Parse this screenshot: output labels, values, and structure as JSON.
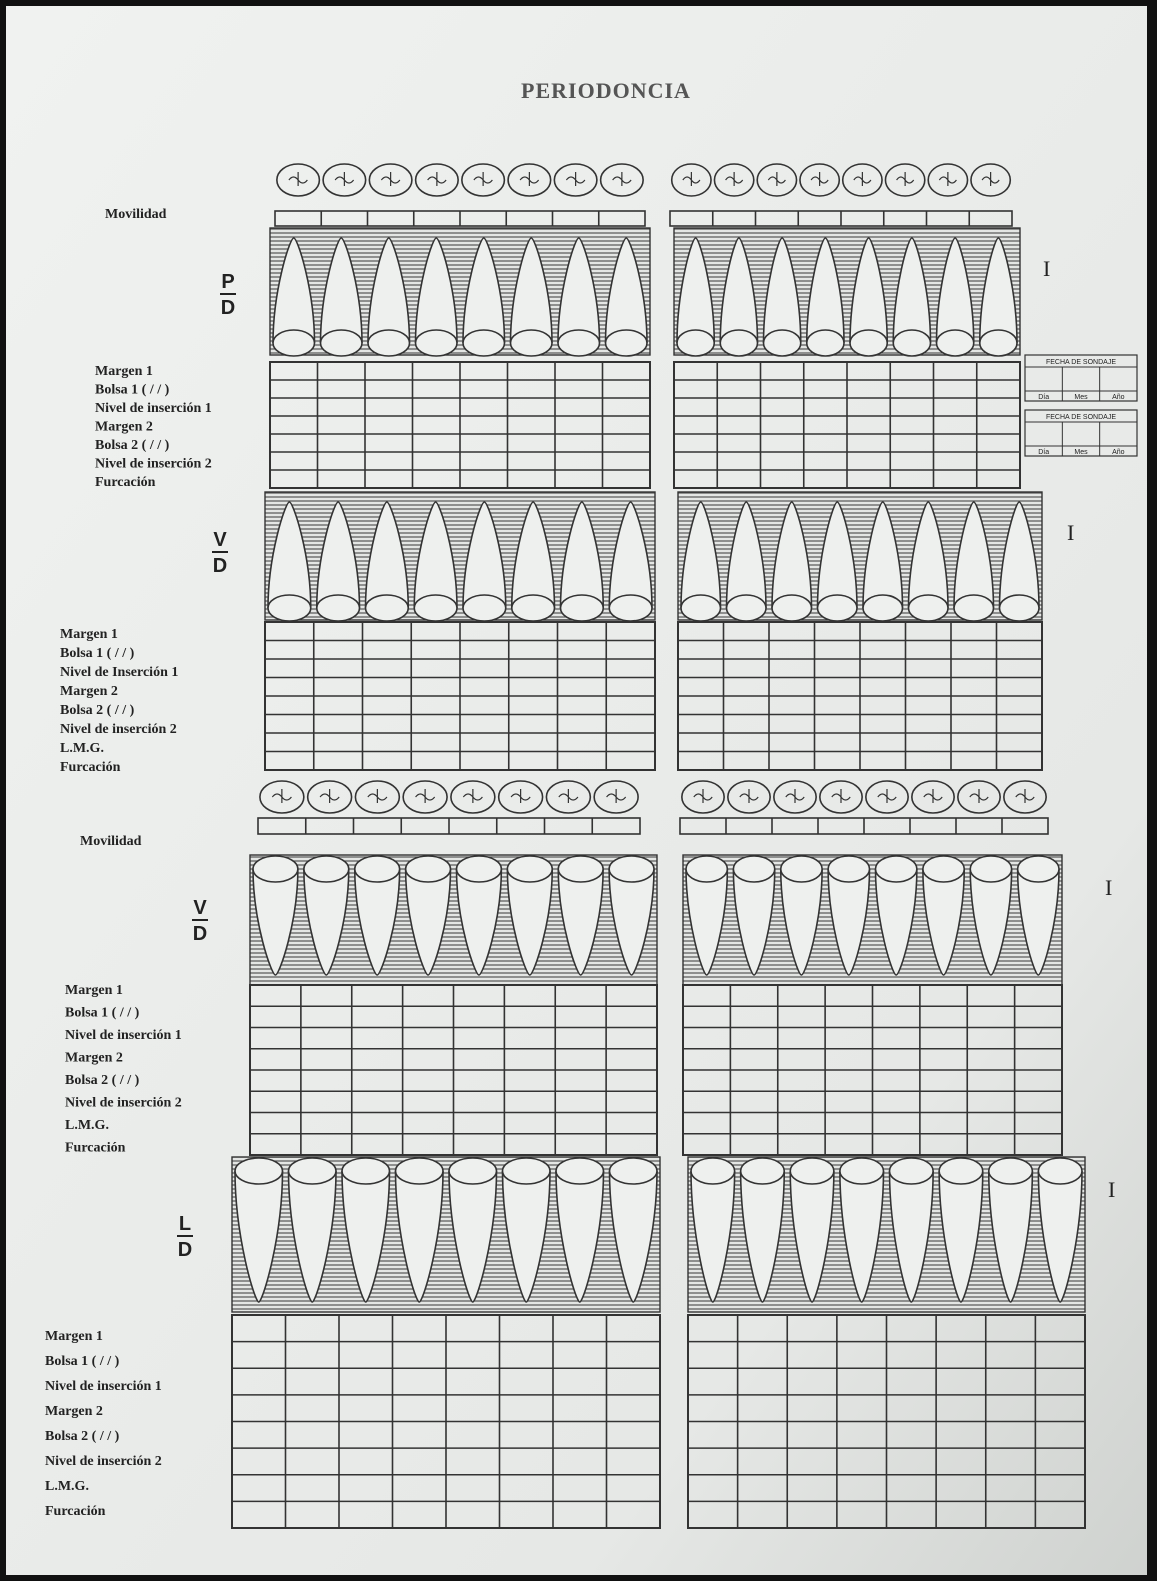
{
  "title": "PERIODONCIA",
  "mobility_labels": [
    "Movilidad",
    "Movilidad"
  ],
  "date_boxes": [
    {
      "title": "FECHA DE SONDAJE",
      "fields": [
        "Día",
        "Mes",
        "Año"
      ]
    },
    {
      "title": "FECHA DE SONDAJE",
      "fields": [
        "Día",
        "Mes",
        "Año"
      ]
    }
  ],
  "sections": [
    {
      "view": "P",
      "ref": "D",
      "side": "I",
      "rows": [
        "Margen 1",
        "Bolsa 1 ( / / )",
        "Nivel de inserción 1",
        "Margen 2",
        "Bolsa 2 ( / / )",
        "Nivel de inserción 2",
        "Furcación"
      ]
    },
    {
      "view": "V",
      "ref": "D",
      "side": "I",
      "rows": [
        "Margen 1",
        "Bolsa 1 ( / / )",
        "Nivel de Inserción 1",
        "Margen 2",
        "Bolsa 2 ( / / )",
        "Nivel de inserción 2",
        "L.M.G.",
        "Furcación"
      ]
    },
    {
      "view": "V",
      "ref": "D",
      "side": "I",
      "rows": [
        "Margen 1",
        "Bolsa 1 ( / / )",
        "Nivel de inserción 1",
        "Margen 2",
        "Bolsa 2 ( / / )",
        "Nivel de inserción 2",
        "L.M.G.",
        "Furcación"
      ]
    },
    {
      "view": "L",
      "ref": "D",
      "side": "I",
      "rows": [
        "Margen 1",
        "Bolsa 1 ( / / )",
        "Nivel de inserción 1",
        "Margen 2",
        "Bolsa 2 ( / / )",
        "Nivel de inserción 2",
        "L.M.G.",
        "Furcación"
      ]
    }
  ]
}
